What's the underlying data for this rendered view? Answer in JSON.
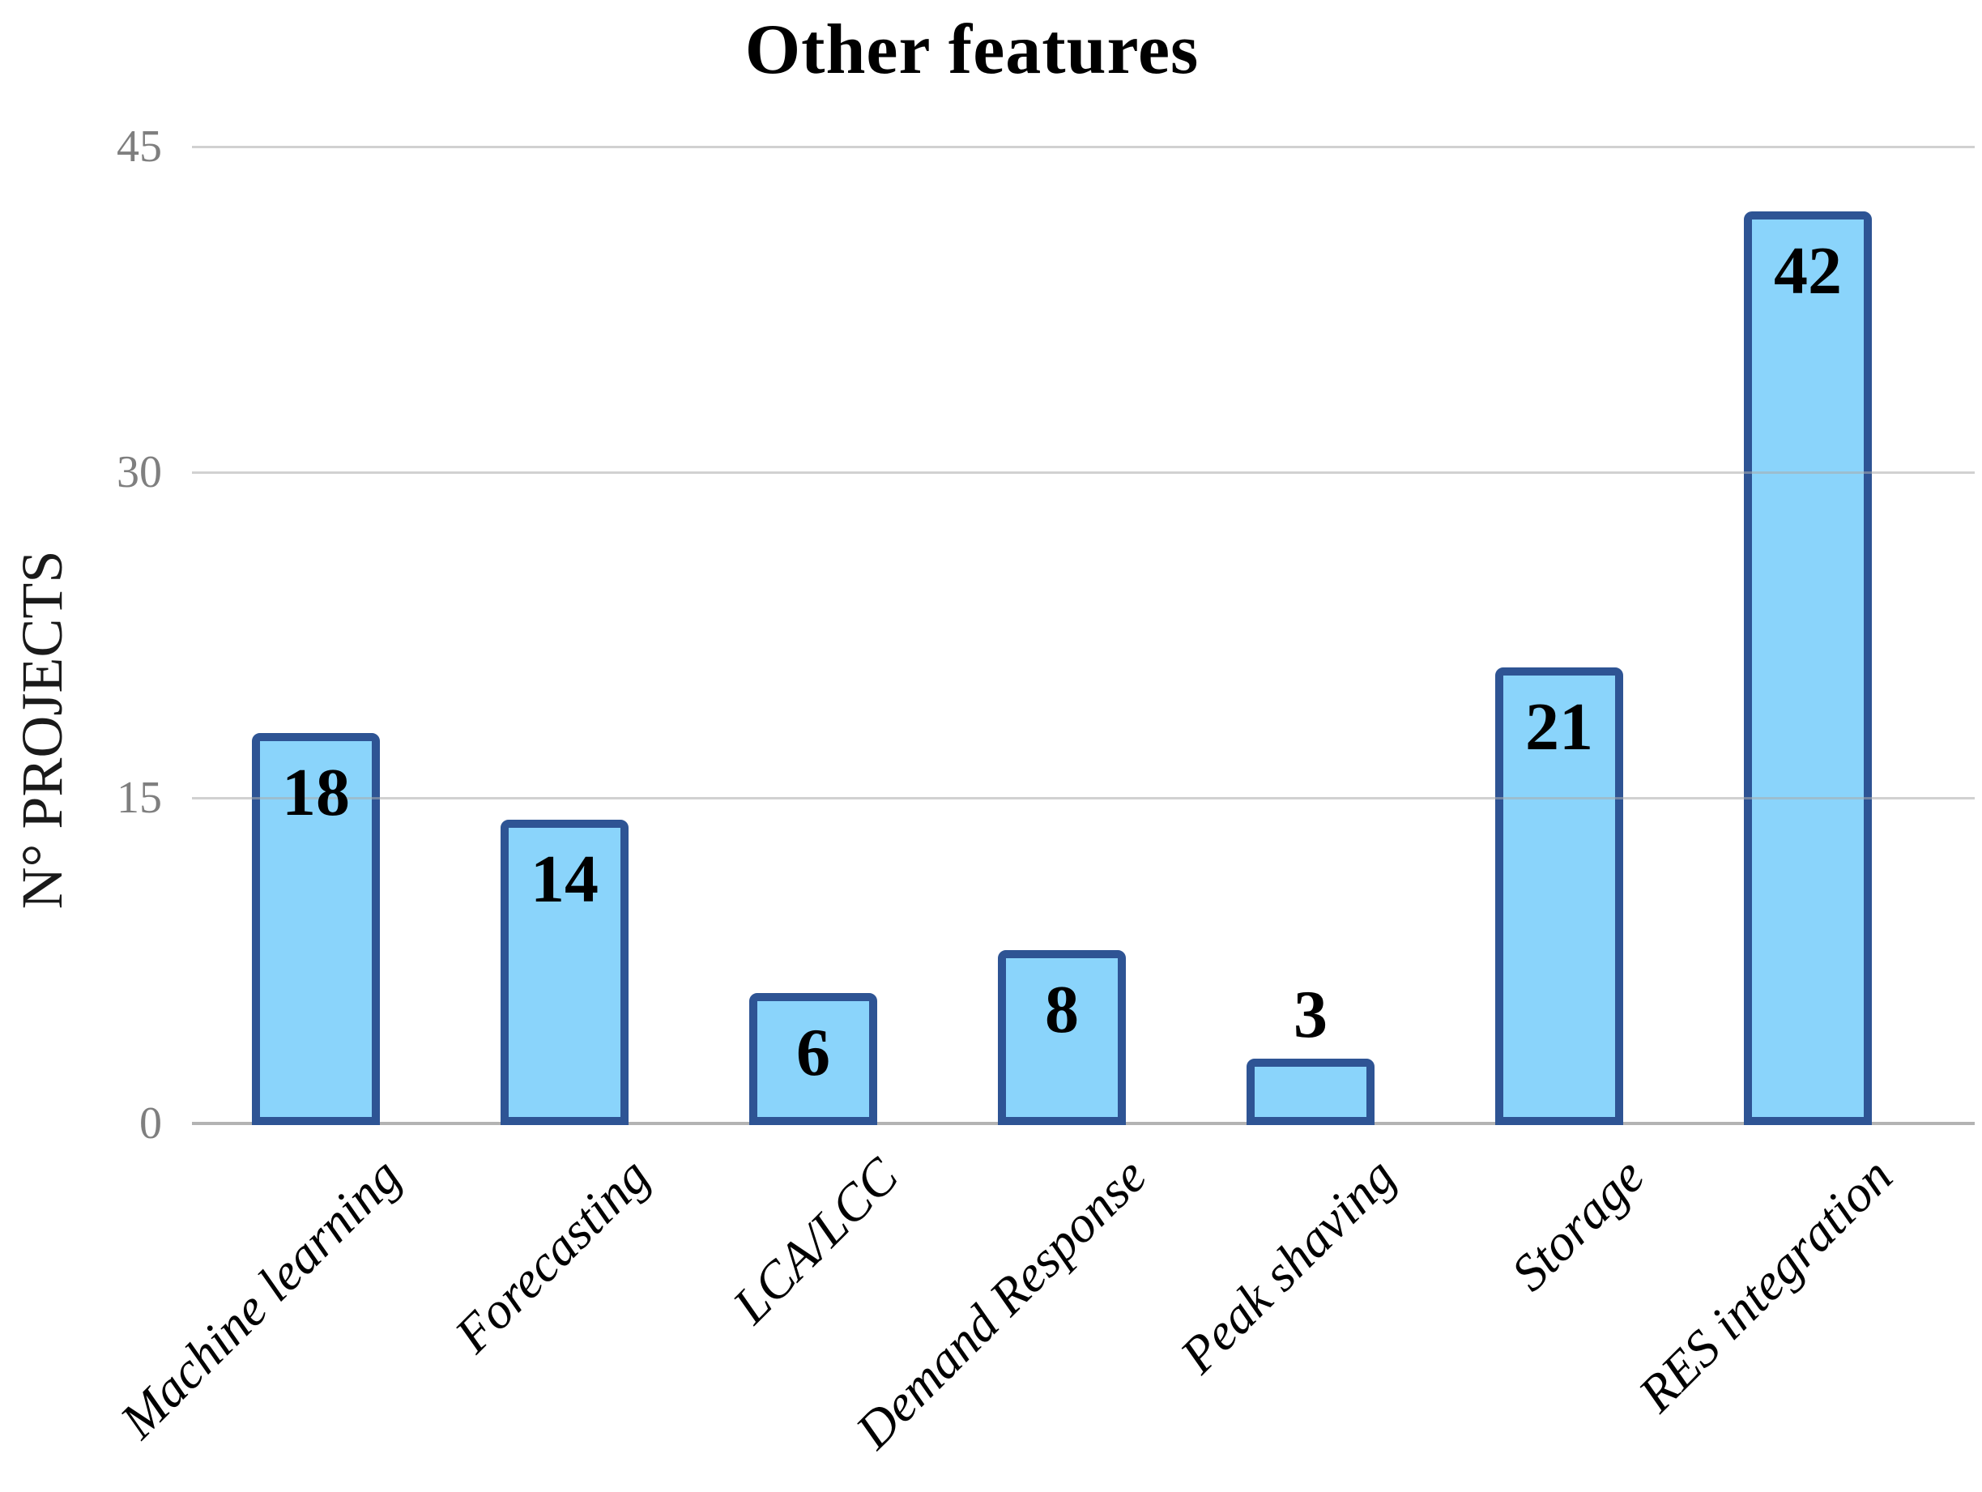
{
  "title": "Other features",
  "y_axis": {
    "label": "N° PROJECTS",
    "ticks": [
      "45",
      "30",
      "15",
      "0"
    ]
  },
  "chart_data": {
    "type": "bar",
    "title": "Other features",
    "xlabel": "",
    "ylabel": "N° PROJECTS",
    "categories": [
      "Machine learning",
      "Forecasting",
      "LCA/LCC",
      "Demand Response",
      "Peak shaving",
      "Storage",
      "RES integration"
    ],
    "values": [
      18,
      14,
      6,
      8,
      3,
      21,
      42
    ],
    "ylim": [
      0,
      45
    ],
    "yticks": [
      0,
      15,
      30,
      45
    ],
    "grid": "horizontal",
    "legend_position": "none",
    "bar_labels": [
      "18",
      "14",
      "6",
      "8",
      "3",
      "21",
      "42"
    ],
    "colors": {
      "bar_fill": "#8AD4FB",
      "bar_border": "#2E5494",
      "gridline": "#ABABAB",
      "axis_line": "#B3B3B3",
      "tick_label": "#7F7F7F",
      "text": "#000000"
    }
  }
}
